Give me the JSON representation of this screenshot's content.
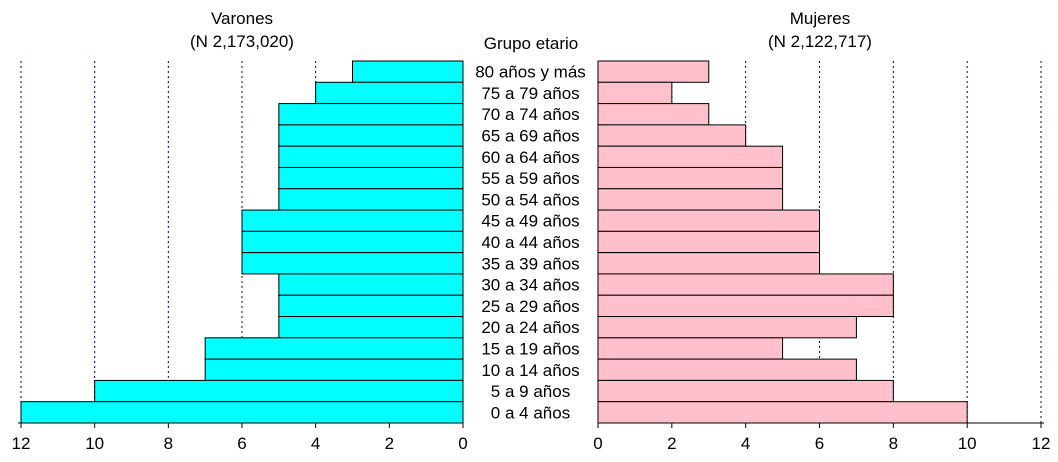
{
  "chart_data": {
    "type": "bar",
    "orientation": "horizontal",
    "layout": "population-pyramid",
    "center_label": "Grupo etario",
    "categories": [
      "80 años y más",
      "75 a 79 años",
      "70 a 74 años",
      "65 a 69 años",
      "60 a 64 años",
      "55 a 59 años",
      "50 a 54 años",
      "45 a 49 años",
      "40 a 44 años",
      "35 a 39 años",
      "30 a 34 años",
      "25 a 29 años",
      "20 a 24 años",
      "15 a 19 años",
      "10 a 14 años",
      "5 a 9 años",
      "0 a 4 años"
    ],
    "series": [
      {
        "name": "Varones",
        "subtitle": "(N 2,173,020)",
        "side": "left",
        "color": "#00FFFF",
        "values": [
          3,
          4,
          5,
          5,
          5,
          5,
          5,
          6,
          6,
          6,
          5,
          5,
          5,
          7,
          7,
          10,
          12
        ]
      },
      {
        "name": "Mujeres",
        "subtitle": "(N 2,122,717)",
        "side": "right",
        "color": "#FFC0CB",
        "values": [
          3,
          2,
          3,
          4,
          5,
          5,
          5,
          6,
          6,
          6,
          8,
          8,
          7,
          5,
          7,
          8,
          10
        ]
      }
    ],
    "xlim": [
      0,
      12
    ],
    "ticks": [
      "0",
      "2",
      "4",
      "6",
      "8",
      "10",
      "12"
    ],
    "grid": "vertical dotted",
    "grid_color": "#00008B",
    "bar_edge_color": "#000000"
  }
}
